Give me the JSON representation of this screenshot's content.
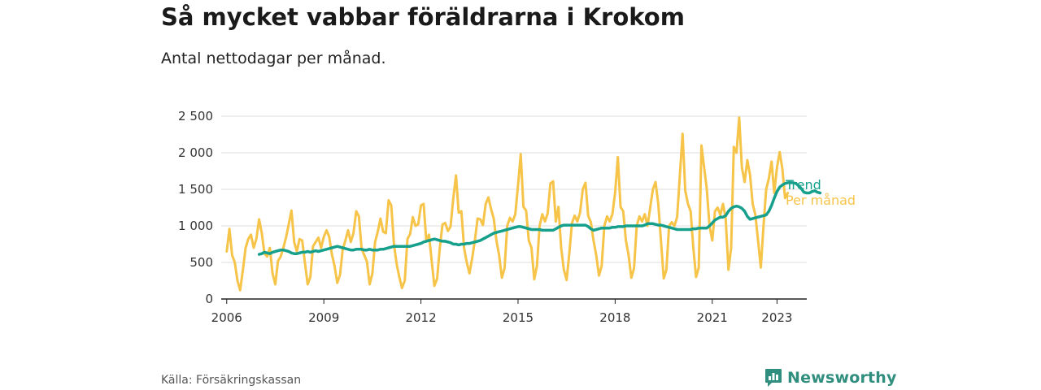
{
  "title": "Så mycket vabbar föräldrarna i Krokom",
  "subtitle": "Antal nettodagar per månad.",
  "source": "Källa: Försäkringskassan",
  "brand": "Newsworthy",
  "colors": {
    "monthly": "#f7c44a",
    "trend": "#16a08c",
    "grid": "#dddddd",
    "axis": "#222222",
    "brand": "#2f8e7d"
  },
  "icons": [
    "newsworthy-logo-icon"
  ],
  "chart_data": {
    "type": "line",
    "title": "Så mycket vabbar föräldrarna i Krokom",
    "subtitle": "Antal nettodagar per månad.",
    "xlim": [
      2005.83,
      2023.92
    ],
    "ylim": [
      0,
      2500
    ],
    "y_ticks": [
      0,
      500,
      1000,
      1500,
      2000,
      2500
    ],
    "y_tick_labels": [
      "0",
      "500",
      "1 000",
      "1 500",
      "2 000",
      "2 500"
    ],
    "x_ticks": [
      2006,
      2009,
      2012,
      2015,
      2018,
      2021,
      2023
    ],
    "x_tick_labels": [
      "2006",
      "2009",
      "2012",
      "2015",
      "2018",
      "2021",
      "2023"
    ],
    "grid": true,
    "legend": "right-of-lines",
    "series": [
      {
        "name": "Per månad",
        "start": 2006.0,
        "step": 0.08333,
        "values": [
          650,
          960,
          600,
          500,
          250,
          120,
          400,
          700,
          820,
          880,
          700,
          820,
          1090,
          900,
          620,
          580,
          700,
          350,
          200,
          520,
          580,
          700,
          840,
          1020,
          1210,
          780,
          650,
          820,
          800,
          500,
          200,
          300,
          720,
          780,
          840,
          700,
          850,
          940,
          850,
          610,
          450,
          220,
          330,
          680,
          800,
          940,
          780,
          900,
          1200,
          1130,
          690,
          600,
          510,
          200,
          350,
          780,
          920,
          1100,
          920,
          900,
          1350,
          1280,
          750,
          480,
          300,
          150,
          250,
          820,
          890,
          1120,
          1000,
          1020,
          1280,
          1300,
          790,
          880,
          520,
          180,
          280,
          700,
          1020,
          1040,
          930,
          990,
          1380,
          1690,
          1180,
          1200,
          700,
          500,
          350,
          560,
          800,
          1100,
          1090,
          1010,
          1300,
          1390,
          1230,
          1100,
          800,
          600,
          290,
          420,
          1000,
          1110,
          1060,
          1160,
          1560,
          1980,
          1260,
          1210,
          800,
          700,
          270,
          450,
          1000,
          1160,
          1060,
          1170,
          1580,
          1610,
          1060,
          1260,
          700,
          400,
          260,
          620,
          1040,
          1140,
          1060,
          1180,
          1500,
          1590,
          1140,
          1050,
          800,
          600,
          320,
          450,
          1000,
          1130,
          1060,
          1160,
          1460,
          1940,
          1260,
          1200,
          800,
          600,
          290,
          420,
          1000,
          1130,
          1060,
          1160,
          1000,
          1250,
          1500,
          1600,
          1300,
          800,
          280,
          400,
          1000,
          1050,
          1000,
          1120,
          1700,
          2260,
          1480,
          1300,
          1200,
          700,
          300,
          430,
          2100,
          1800,
          1500,
          1000,
          800,
          1200,
          1250,
          1150,
          1300,
          1100,
          400,
          700,
          2080,
          2000,
          2480,
          1800,
          1600,
          1900,
          1700,
          1300,
          1150,
          800,
          430,
          1000,
          1500,
          1650,
          1880,
          1450,
          1800,
          2010,
          1780,
          1380,
          1450
        ]
      },
      {
        "name": "Trend",
        "start": 2007.0,
        "step": 0.08333,
        "values": [
          610,
          620,
          640,
          630,
          620,
          640,
          650,
          660,
          670,
          670,
          660,
          650,
          630,
          620,
          620,
          630,
          640,
          640,
          650,
          640,
          650,
          660,
          650,
          660,
          670,
          680,
          690,
          700,
          710,
          720,
          710,
          700,
          690,
          680,
          670,
          670,
          680,
          680,
          680,
          670,
          670,
          680,
          670,
          670,
          670,
          680,
          680,
          690,
          700,
          710,
          720,
          720,
          720,
          720,
          720,
          720,
          720,
          730,
          740,
          750,
          760,
          780,
          790,
          800,
          810,
          820,
          810,
          800,
          790,
          790,
          780,
          770,
          750,
          750,
          740,
          750,
          750,
          760,
          760,
          770,
          780,
          790,
          800,
          820,
          840,
          860,
          880,
          900,
          910,
          920,
          930,
          940,
          950,
          960,
          970,
          980,
          990,
          990,
          980,
          970,
          960,
          950,
          950,
          950,
          950,
          940,
          940,
          940,
          940,
          940,
          960,
          980,
          1000,
          1010,
          1010,
          1010,
          1010,
          1010,
          1010,
          1010,
          1010,
          1010,
          990,
          960,
          940,
          950,
          960,
          970,
          970,
          970,
          970,
          980,
          980,
          990,
          990,
          990,
          1000,
          1000,
          1000,
          1000,
          1000,
          1000,
          1000,
          1010,
          1030,
          1030,
          1030,
          1020,
          1010,
          1010,
          1000,
          990,
          980,
          970,
          960,
          950,
          950,
          950,
          950,
          950,
          950,
          960,
          960,
          970,
          970,
          970,
          970,
          1000,
          1040,
          1080,
          1100,
          1120,
          1120,
          1140,
          1200,
          1240,
          1260,
          1270,
          1260,
          1240,
          1200,
          1130,
          1090,
          1100,
          1110,
          1120,
          1130,
          1140,
          1150,
          1200,
          1280,
          1380,
          1470,
          1530,
          1560,
          1580,
          1590,
          1590,
          1590,
          1580,
          1550,
          1510,
          1460,
          1450,
          1450,
          1470,
          1480,
          1460,
          1450
        ]
      }
    ]
  }
}
